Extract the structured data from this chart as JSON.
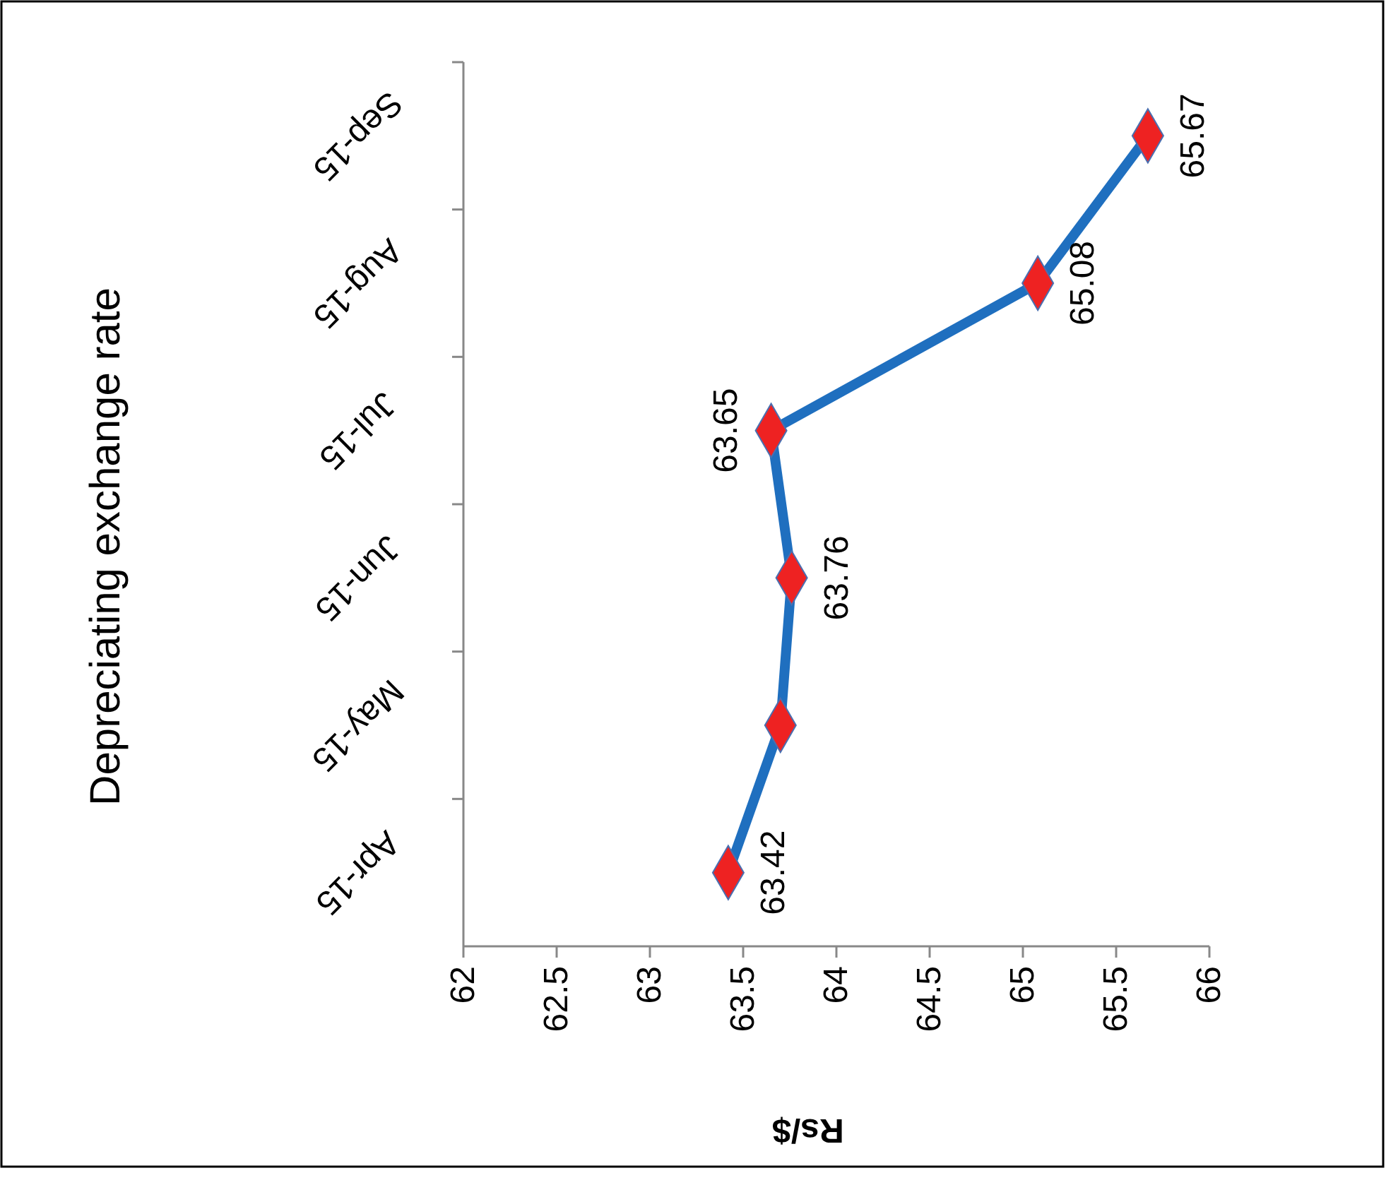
{
  "chart_data": {
    "type": "line",
    "orientation": "horizontal",
    "title": "Depreciating exchange rate",
    "xlabel": "Rs/$",
    "categories": [
      "Sep-15",
      "Aug-15",
      "Jul-15",
      "Jun-15",
      "May-15",
      "Apr-15"
    ],
    "series": [
      {
        "color": "#1f6fbf",
        "values": [
          65.67,
          65.08,
          63.65,
          63.76,
          63.7,
          63.42
        ],
        "value_labels": [
          "65.67",
          "65.08",
          "63.65",
          "63.76",
          null,
          "63.42"
        ]
      }
    ],
    "xlim": [
      62,
      66
    ],
    "xticks": [
      62,
      62.5,
      63,
      63.5,
      64,
      64.5,
      65,
      65.5,
      66
    ],
    "marker": "diamond"
  }
}
